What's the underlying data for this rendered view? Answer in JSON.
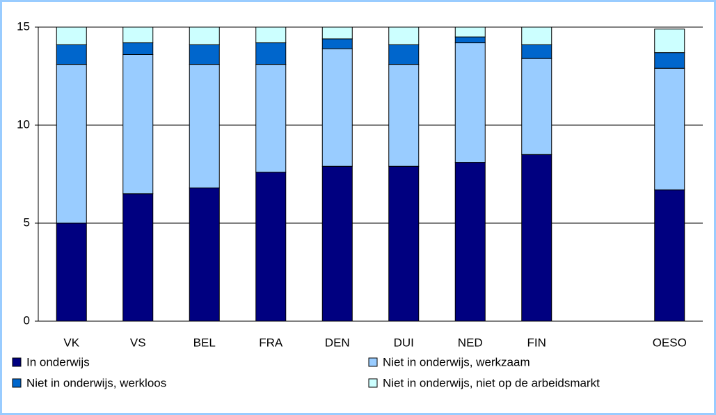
{
  "chart_data": {
    "type": "stacked_bar",
    "categories": [
      "VK",
      "VS",
      "BEL",
      "FRA",
      "DEN",
      "DUI",
      "NED",
      "FIN",
      null,
      "OESO"
    ],
    "series": [
      {
        "name": "In onderwijs",
        "color": "#000080",
        "values": [
          5.0,
          6.5,
          6.8,
          7.6,
          7.9,
          7.9,
          8.1,
          8.5,
          null,
          6.7
        ]
      },
      {
        "name": "Niet in onderwijs, werkzaam",
        "color": "#99ccff",
        "values": [
          8.1,
          7.1,
          6.3,
          5.5,
          6.0,
          5.2,
          6.1,
          4.9,
          null,
          6.2
        ]
      },
      {
        "name": "Niet in onderwijs, werkloos",
        "color": "#0066cc",
        "values": [
          1.0,
          0.6,
          1.0,
          1.1,
          0.5,
          1.0,
          0.3,
          0.7,
          null,
          0.8
        ]
      },
      {
        "name": "Niet in onderwijs, niet op de arbeidsmarkt",
        "color": "#ccffff",
        "values": [
          0.9,
          0.8,
          0.9,
          0.8,
          0.6,
          0.9,
          0.5,
          0.9,
          null,
          1.2
        ]
      }
    ],
    "ylim": [
      0,
      15
    ],
    "yticks": [
      0,
      5,
      10,
      15
    ],
    "grid": true
  }
}
